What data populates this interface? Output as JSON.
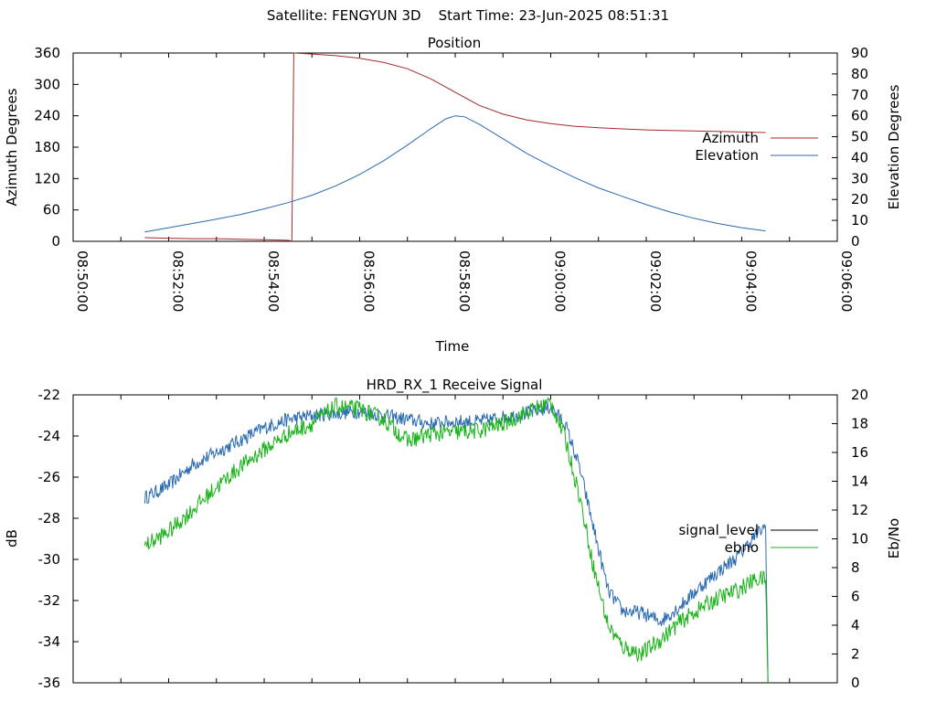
{
  "header": {
    "title": "Satellite: FENGYUN 3D    Start Time: 23-Jun-2025 08:51:31"
  },
  "chart_data": [
    {
      "type": "line",
      "title": "Position",
      "xlabel": "Time",
      "ylabel_left": "Azimuth Degrees",
      "ylabel_right": "Elevation Degrees",
      "x_ticks": [
        "08:50:00",
        "08:52:00",
        "08:54:00",
        "08:56:00",
        "08:58:00",
        "09:00:00",
        "09:02:00",
        "09:04:00",
        "09:06:00"
      ],
      "x_range_minutes": [
        0,
        16
      ],
      "y_left_range": [
        0,
        360
      ],
      "y_left_ticks": [
        0,
        60,
        120,
        180,
        240,
        300,
        360
      ],
      "y_right_range": [
        0,
        90
      ],
      "y_right_ticks": [
        0,
        10,
        20,
        30,
        40,
        50,
        60,
        70,
        80,
        90
      ],
      "legend_position": "right",
      "series": [
        {
          "name": "Azimuth",
          "axis": "left",
          "color": "#a52a2a",
          "x": [
            1.5,
            2.0,
            2.5,
            3.0,
            3.5,
            4.0,
            4.5,
            4.55,
            4.58,
            4.6,
            4.62,
            5.0,
            5.5,
            6.0,
            6.5,
            7.0,
            7.5,
            8.0,
            8.5,
            9.0,
            9.5,
            10.0,
            10.5,
            11.0,
            11.5,
            12.0,
            12.5,
            13.0,
            13.5,
            14.5
          ],
          "y": [
            7,
            6,
            5,
            5,
            4,
            3,
            2,
            1,
            0,
            180,
            360,
            358,
            355,
            350,
            342,
            330,
            310,
            285,
            260,
            243,
            232,
            225,
            220,
            217,
            215,
            213,
            212,
            211,
            210,
            208
          ]
        },
        {
          "name": "Elevation",
          "axis": "right",
          "color": "#2a6ab0",
          "x": [
            1.5,
            2.0,
            2.5,
            3.0,
            3.5,
            4.0,
            4.5,
            5.0,
            5.5,
            6.0,
            6.5,
            7.0,
            7.5,
            7.8,
            8.0,
            8.2,
            8.5,
            9.0,
            9.5,
            10.0,
            10.5,
            11.0,
            11.5,
            12.0,
            12.5,
            13.0,
            13.5,
            14.0,
            14.5
          ],
          "y": [
            4.5,
            6.5,
            8.5,
            10.6,
            12.8,
            15.5,
            18.5,
            22.0,
            26.5,
            32.0,
            38.5,
            46.0,
            54.0,
            58.5,
            60.0,
            59.5,
            56.0,
            49.0,
            42.0,
            36.0,
            30.5,
            25.5,
            21.5,
            17.5,
            14.0,
            11.0,
            8.5,
            6.5,
            5.0
          ]
        }
      ]
    },
    {
      "type": "line",
      "title": "HRD_RX_1 Receive Signal",
      "xlabel": "",
      "ylabel_left": "dB",
      "ylabel_right": "Eb/No",
      "x_range_minutes": [
        0,
        16
      ],
      "y_left_range": [
        -36,
        -22
      ],
      "y_left_ticks": [
        -36,
        -34,
        -32,
        -30,
        -28,
        -26,
        -24,
        -22
      ],
      "y_right_range": [
        0,
        20
      ],
      "y_right_ticks": [
        0,
        2,
        4,
        6,
        8,
        10,
        12,
        14,
        16,
        18,
        20
      ],
      "legend_position": "right",
      "series": [
        {
          "name": "signal_level",
          "axis": "left",
          "color": "#2a6ab0",
          "noise": 0.35,
          "x": [
            1.5,
            2.0,
            2.5,
            3.0,
            3.5,
            4.0,
            4.5,
            5.0,
            5.5,
            6.0,
            6.5,
            7.0,
            7.5,
            8.0,
            8.5,
            9.0,
            9.5,
            10.0,
            10.3,
            10.6,
            10.9,
            11.2,
            11.5,
            11.9,
            12.3,
            12.7,
            13.1,
            13.5,
            13.9,
            14.3,
            14.5,
            14.55
          ],
          "y": [
            -27.0,
            -26.4,
            -25.4,
            -24.8,
            -24.2,
            -23.6,
            -23.2,
            -23.0,
            -22.9,
            -22.8,
            -23.0,
            -23.2,
            -23.4,
            -23.3,
            -23.3,
            -23.1,
            -22.9,
            -22.6,
            -23.4,
            -25.5,
            -28.5,
            -31.5,
            -32.5,
            -32.6,
            -33.0,
            -32.3,
            -31.4,
            -30.6,
            -29.9,
            -28.8,
            -28.4,
            -36.0
          ]
        },
        {
          "name": "ebno",
          "axis": "right",
          "color": "#19b219",
          "noise": 0.6,
          "x": [
            1.5,
            2.0,
            2.5,
            3.0,
            3.5,
            4.0,
            4.5,
            5.0,
            5.5,
            6.0,
            6.5,
            7.0,
            7.5,
            8.0,
            8.5,
            9.0,
            9.5,
            10.0,
            10.3,
            10.6,
            10.9,
            11.2,
            11.5,
            11.9,
            12.3,
            12.7,
            13.1,
            13.5,
            13.9,
            14.3,
            14.5,
            14.55
          ],
          "y": [
            9.5,
            10.5,
            12.0,
            13.6,
            15.0,
            16.2,
            17.3,
            18.0,
            19.2,
            19.0,
            18.3,
            16.8,
            17.3,
            17.4,
            17.5,
            18.0,
            18.8,
            19.5,
            17.0,
            13.0,
            8.0,
            4.0,
            2.5,
            2.0,
            3.0,
            4.2,
            5.1,
            5.9,
            6.4,
            7.2,
            7.2,
            0
          ]
        }
      ]
    }
  ]
}
